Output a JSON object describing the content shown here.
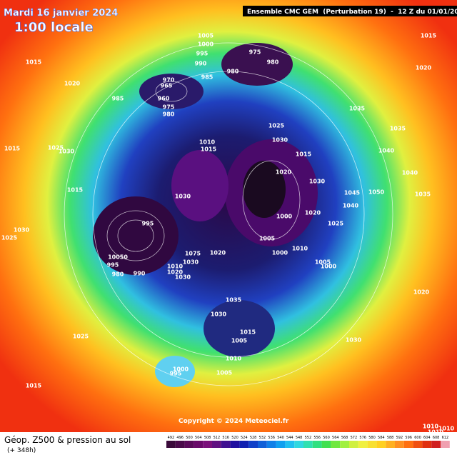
{
  "header": {
    "date": "Mardi 16 janvier 2024",
    "time": "1:00 locale",
    "model": "Ensemble CMC GEM  (Perturbation 19)  -  12 Z du 01/01/2024"
  },
  "copyright": "Copyright © 2024 Meteociel.fr",
  "footer": {
    "title": "Géop. Z500 & pression au sol",
    "lead": "(+ 348h)"
  },
  "isobars": [
    1005,
    1000,
    995,
    990,
    975,
    980,
    980,
    985,
    970,
    965,
    960,
    985,
    975,
    980,
    1015,
    1015,
    1020,
    1020,
    1035,
    1035,
    1025,
    1030,
    1010,
    1015,
    1015,
    1020,
    1030,
    1040,
    1040,
    1025,
    1030,
    1015,
    1015,
    1030,
    1045,
    1050,
    1035,
    1040,
    1000,
    1020,
    1025,
    995,
    1030,
    1025,
    1005,
    1010,
    1000,
    1020,
    1075,
    10050,
    1030,
    995,
    1005,
    1000,
    1010,
    1020,
    980,
    990,
    1030,
    1020,
    1035,
    1030,
    1015,
    1005,
    1030,
    1025,
    1010,
    1000,
    995,
    1005,
    1015,
    1010,
    1010,
    1010
  ],
  "legend": [
    492,
    496,
    500,
    504,
    508,
    512,
    516,
    520,
    524,
    528,
    532,
    536,
    540,
    544,
    548,
    552,
    556,
    560,
    564,
    568,
    572,
    576,
    580,
    584,
    588,
    592,
    596,
    600,
    604,
    608,
    612
  ]
}
